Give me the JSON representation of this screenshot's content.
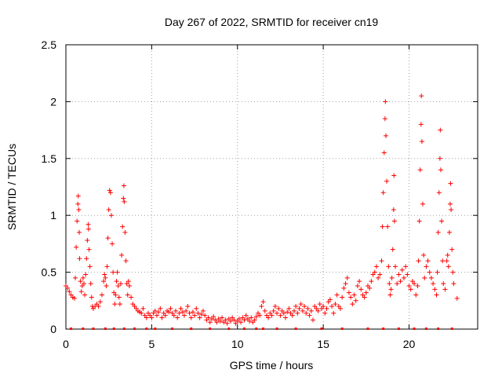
{
  "chart_data": {
    "type": "scatter",
    "title": "Day 267 of 2022, SRMTID for receiver cn19",
    "xlabel": "GPS time / hours",
    "ylabel": "SRMTID / TECUs",
    "xlim": [
      0,
      24
    ],
    "ylim": [
      0,
      2.5
    ],
    "xticks": [
      0,
      5,
      10,
      15,
      20
    ],
    "xtick_labels": [
      "0",
      "5",
      "10",
      "15",
      "20"
    ],
    "yticks": [
      0,
      0.5,
      1,
      1.5,
      2,
      2.5
    ],
    "ytick_labels": [
      "0",
      "0.5",
      "1",
      "1.5",
      "2",
      "2.5"
    ],
    "grid": true,
    "marker": "+",
    "series_color": "#ff0000",
    "series": [
      {
        "name": "SRMTID",
        "points": [
          [
            0.0,
            0.38
          ],
          [
            0.1,
            0.36
          ],
          [
            0.2,
            0.33
          ],
          [
            0.3,
            0.3
          ],
          [
            0.4,
            0.28
          ],
          [
            0.5,
            0.27
          ],
          [
            0.55,
            0.45
          ],
          [
            0.6,
            0.72
          ],
          [
            0.65,
            0.95
          ],
          [
            0.7,
            1.1
          ],
          [
            0.72,
            1.17
          ],
          [
            0.75,
            1.05
          ],
          [
            0.78,
            0.85
          ],
          [
            0.8,
            0.62
          ],
          [
            0.85,
            0.42
          ],
          [
            0.9,
            0.33
          ],
          [
            0.95,
            0.38
          ],
          [
            1.0,
            0.45
          ],
          [
            1.05,
            0.4
          ],
          [
            1.1,
            0.3
          ],
          [
            1.15,
            0.48
          ],
          [
            1.2,
            0.62
          ],
          [
            1.25,
            0.78
          ],
          [
            1.3,
            0.92
          ],
          [
            1.32,
            0.88
          ],
          [
            1.35,
            0.7
          ],
          [
            1.4,
            0.55
          ],
          [
            1.45,
            0.4
          ],
          [
            1.5,
            0.28
          ],
          [
            1.55,
            0.2
          ],
          [
            1.6,
            0.18
          ],
          [
            1.7,
            0.2
          ],
          [
            1.8,
            0.22
          ],
          [
            1.9,
            0.2
          ],
          [
            2.0,
            0.24
          ],
          [
            2.1,
            0.3
          ],
          [
            2.2,
            0.42
          ],
          [
            2.25,
            0.48
          ],
          [
            2.3,
            0.45
          ],
          [
            2.35,
            0.38
          ],
          [
            2.4,
            0.55
          ],
          [
            2.45,
            0.8
          ],
          [
            2.5,
            1.05
          ],
          [
            2.55,
            1.22
          ],
          [
            2.6,
            1.2
          ],
          [
            2.65,
            1.0
          ],
          [
            2.7,
            0.75
          ],
          [
            2.75,
            0.5
          ],
          [
            2.8,
            0.32
          ],
          [
            2.85,
            0.22
          ],
          [
            2.9,
            0.3
          ],
          [
            2.95,
            0.42
          ],
          [
            3.0,
            0.5
          ],
          [
            3.05,
            0.38
          ],
          [
            3.1,
            0.28
          ],
          [
            3.15,
            0.22
          ],
          [
            3.2,
            0.4
          ],
          [
            3.25,
            0.65
          ],
          [
            3.3,
            0.9
          ],
          [
            3.35,
            1.15
          ],
          [
            3.38,
            1.26
          ],
          [
            3.4,
            1.12
          ],
          [
            3.45,
            0.85
          ],
          [
            3.5,
            0.6
          ],
          [
            3.55,
            0.4
          ],
          [
            3.6,
            0.3
          ],
          [
            3.65,
            0.42
          ],
          [
            3.7,
            0.38
          ],
          [
            3.8,
            0.28
          ],
          [
            3.9,
            0.22
          ],
          [
            4.0,
            0.2
          ],
          [
            4.1,
            0.18
          ],
          [
            4.2,
            0.16
          ],
          [
            4.3,
            0.15
          ],
          [
            4.4,
            0.14
          ],
          [
            4.5,
            0.18
          ],
          [
            4.6,
            0.12
          ],
          [
            4.7,
            0.1
          ],
          [
            4.8,
            0.14
          ],
          [
            4.9,
            0.12
          ],
          [
            5.0,
            0.1
          ],
          [
            5.1,
            0.14
          ],
          [
            5.2,
            0.16
          ],
          [
            5.3,
            0.12
          ],
          [
            5.4,
            0.15
          ],
          [
            5.5,
            0.18
          ],
          [
            5.6,
            0.1
          ],
          [
            5.7,
            0.14
          ],
          [
            5.8,
            0.12
          ],
          [
            5.9,
            0.16
          ],
          [
            6.0,
            0.15
          ],
          [
            6.1,
            0.18
          ],
          [
            6.2,
            0.14
          ],
          [
            6.3,
            0.12
          ],
          [
            6.4,
            0.16
          ],
          [
            6.5,
            0.1
          ],
          [
            6.6,
            0.14
          ],
          [
            6.7,
            0.18
          ],
          [
            6.8,
            0.15
          ],
          [
            6.9,
            0.12
          ],
          [
            7.0,
            0.16
          ],
          [
            7.1,
            0.2
          ],
          [
            7.2,
            0.14
          ],
          [
            7.3,
            0.1
          ],
          [
            7.4,
            0.15
          ],
          [
            7.5,
            0.12
          ],
          [
            7.6,
            0.18
          ],
          [
            7.7,
            0.14
          ],
          [
            7.8,
            0.1
          ],
          [
            7.9,
            0.13
          ],
          [
            8.0,
            0.16
          ],
          [
            8.1,
            0.12
          ],
          [
            8.2,
            0.08
          ],
          [
            8.3,
            0.1
          ],
          [
            8.4,
            0.06
          ],
          [
            8.5,
            0.09
          ],
          [
            8.6,
            0.11
          ],
          [
            8.7,
            0.08
          ],
          [
            8.8,
            0.06
          ],
          [
            8.9,
            0.09
          ],
          [
            9.0,
            0.07
          ],
          [
            9.1,
            0.1
          ],
          [
            9.2,
            0.06
          ],
          [
            9.3,
            0.08
          ],
          [
            9.4,
            0.05
          ],
          [
            9.5,
            0.09
          ],
          [
            9.6,
            0.07
          ],
          [
            9.7,
            0.1
          ],
          [
            9.8,
            0.08
          ],
          [
            9.9,
            0.05
          ],
          [
            10.0,
            0.07
          ],
          [
            10.1,
            0.09
          ],
          [
            10.2,
            0.06
          ],
          [
            10.3,
            0.1
          ],
          [
            10.4,
            0.08
          ],
          [
            10.5,
            0.12
          ],
          [
            10.6,
            0.09
          ],
          [
            10.7,
            0.07
          ],
          [
            10.8,
            0.1
          ],
          [
            10.9,
            0.06
          ],
          [
            11.0,
            0.08
          ],
          [
            11.1,
            0.11
          ],
          [
            11.2,
            0.14
          ],
          [
            11.3,
            0.12
          ],
          [
            11.4,
            0.2
          ],
          [
            11.5,
            0.24
          ],
          [
            11.6,
            0.16
          ],
          [
            11.7,
            0.12
          ],
          [
            11.8,
            0.1
          ],
          [
            11.9,
            0.14
          ],
          [
            12.0,
            0.12
          ],
          [
            12.1,
            0.16
          ],
          [
            12.2,
            0.2
          ],
          [
            12.3,
            0.14
          ],
          [
            12.4,
            0.18
          ],
          [
            12.5,
            0.12
          ],
          [
            12.6,
            0.16
          ],
          [
            12.7,
            0.14
          ],
          [
            12.8,
            0.1
          ],
          [
            12.9,
            0.15
          ],
          [
            13.0,
            0.18
          ],
          [
            13.1,
            0.14
          ],
          [
            13.2,
            0.12
          ],
          [
            13.3,
            0.16
          ],
          [
            13.4,
            0.2
          ],
          [
            13.5,
            0.14
          ],
          [
            13.6,
            0.18
          ],
          [
            13.7,
            0.22
          ],
          [
            13.8,
            0.16
          ],
          [
            13.9,
            0.2
          ],
          [
            14.0,
            0.14
          ],
          [
            14.1,
            0.18
          ],
          [
            14.2,
            0.12
          ],
          [
            14.3,
            0.16
          ],
          [
            14.4,
            0.08
          ],
          [
            14.5,
            0.2
          ],
          [
            14.6,
            0.18
          ],
          [
            14.7,
            0.16
          ],
          [
            14.8,
            0.22
          ],
          [
            14.9,
            0.18
          ],
          [
            15.0,
            0.2
          ],
          [
            15.1,
            0.14
          ],
          [
            15.2,
            0.18
          ],
          [
            15.3,
            0.24
          ],
          [
            15.4,
            0.26
          ],
          [
            15.5,
            0.2
          ],
          [
            15.6,
            0.14
          ],
          [
            15.7,
            0.22
          ],
          [
            15.8,
            0.3
          ],
          [
            15.9,
            0.2
          ],
          [
            16.0,
            0.18
          ],
          [
            16.1,
            0.28
          ],
          [
            16.2,
            0.36
          ],
          [
            16.3,
            0.4
          ],
          [
            16.4,
            0.45
          ],
          [
            16.5,
            0.32
          ],
          [
            16.6,
            0.28
          ],
          [
            16.7,
            0.22
          ],
          [
            16.8,
            0.3
          ],
          [
            16.9,
            0.25
          ],
          [
            17.0,
            0.38
          ],
          [
            17.1,
            0.42
          ],
          [
            17.2,
            0.35
          ],
          [
            17.3,
            0.3
          ],
          [
            17.4,
            0.28
          ],
          [
            17.5,
            0.32
          ],
          [
            17.6,
            0.38
          ],
          [
            17.7,
            0.36
          ],
          [
            17.8,
            0.42
          ],
          [
            17.9,
            0.48
          ],
          [
            18.0,
            0.5
          ],
          [
            18.1,
            0.55
          ],
          [
            18.2,
            0.45
          ],
          [
            18.3,
            0.48
          ],
          [
            18.4,
            0.6
          ],
          [
            18.45,
            0.9
          ],
          [
            18.5,
            1.2
          ],
          [
            18.55,
            1.55
          ],
          [
            18.6,
            1.85
          ],
          [
            18.62,
            2.0
          ],
          [
            18.65,
            1.7
          ],
          [
            18.7,
            1.3
          ],
          [
            18.75,
            0.9
          ],
          [
            18.8,
            0.55
          ],
          [
            18.85,
            0.4
          ],
          [
            18.9,
            0.3
          ],
          [
            18.95,
            0.35
          ],
          [
            19.0,
            0.45
          ],
          [
            19.05,
            0.7
          ],
          [
            19.1,
            1.05
          ],
          [
            19.12,
            1.35
          ],
          [
            19.15,
            0.95
          ],
          [
            19.2,
            0.55
          ],
          [
            19.3,
            0.4
          ],
          [
            19.4,
            0.48
          ],
          [
            19.5,
            0.42
          ],
          [
            19.6,
            0.52
          ],
          [
            19.7,
            0.45
          ],
          [
            19.8,
            0.55
          ],
          [
            19.9,
            0.48
          ],
          [
            20.0,
            0.38
          ],
          [
            20.1,
            0.35
          ],
          [
            20.2,
            0.42
          ],
          [
            20.3,
            0.4
          ],
          [
            20.4,
            0.3
          ],
          [
            20.5,
            0.38
          ],
          [
            20.55,
            0.6
          ],
          [
            20.6,
            0.95
          ],
          [
            20.65,
            1.4
          ],
          [
            20.7,
            1.8
          ],
          [
            20.72,
            2.05
          ],
          [
            20.75,
            1.65
          ],
          [
            20.8,
            1.1
          ],
          [
            20.85,
            0.65
          ],
          [
            20.9,
            0.45
          ],
          [
            21.0,
            0.55
          ],
          [
            21.1,
            0.6
          ],
          [
            21.2,
            0.5
          ],
          [
            21.3,
            0.45
          ],
          [
            21.4,
            0.4
          ],
          [
            21.5,
            0.35
          ],
          [
            21.6,
            0.3
          ],
          [
            21.65,
            0.5
          ],
          [
            21.7,
            0.85
          ],
          [
            21.75,
            1.2
          ],
          [
            21.8,
            1.5
          ],
          [
            21.82,
            1.75
          ],
          [
            21.85,
            1.4
          ],
          [
            21.9,
            0.95
          ],
          [
            21.95,
            0.6
          ],
          [
            22.0,
            0.4
          ],
          [
            22.1,
            0.35
          ],
          [
            22.2,
            0.6
          ],
          [
            22.25,
            0.65
          ],
          [
            22.3,
            0.55
          ],
          [
            22.35,
            0.85
          ],
          [
            22.4,
            1.1
          ],
          [
            22.42,
            1.28
          ],
          [
            22.45,
            1.05
          ],
          [
            22.5,
            0.7
          ],
          [
            22.55,
            0.5
          ],
          [
            22.6,
            0.4
          ],
          [
            22.8,
            0.27
          ]
        ]
      }
    ],
    "baseline_markers_x": [
      0.3,
      1.0,
      1.6,
      2.3,
      2.8,
      3.4,
      4.0,
      4.7,
      5.2,
      6.2,
      7.3,
      8.4,
      9.5,
      10.4,
      11.1,
      11.5,
      12.3,
      13.4,
      14.9,
      16.1,
      17.6,
      18.5,
      19.4,
      20.3,
      21.0,
      21.7,
      22.5
    ]
  }
}
